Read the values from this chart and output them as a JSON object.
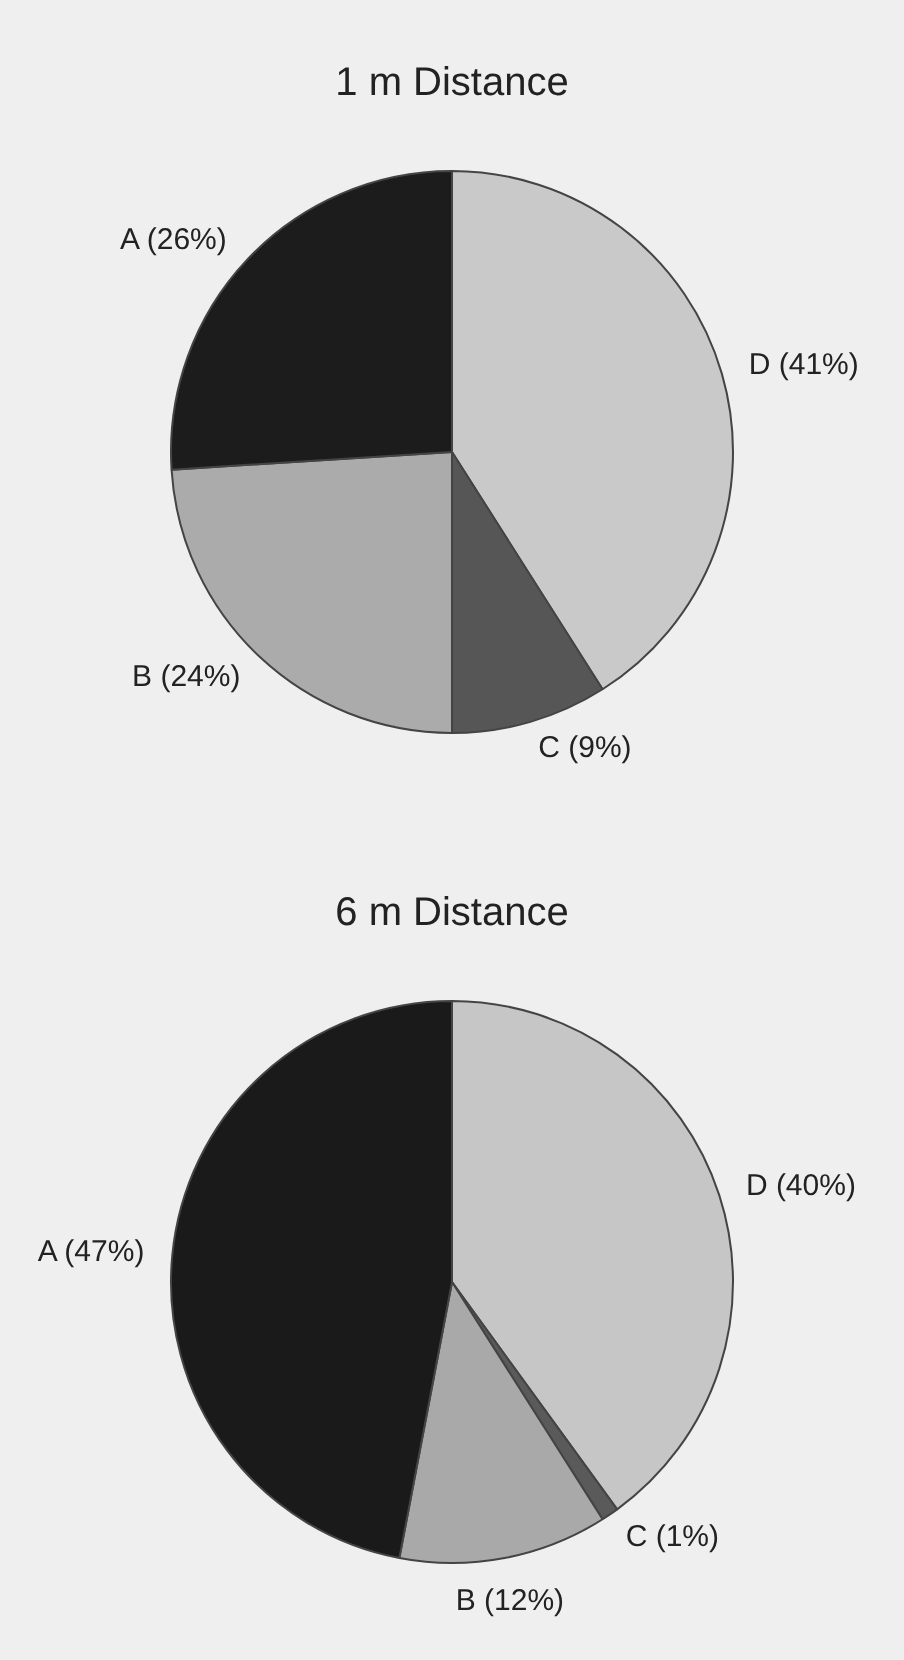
{
  "chart_data": [
    {
      "type": "pie",
      "title": "1 m Distance",
      "categories": [
        "D (41%)",
        "C (9%)",
        "B (24%)",
        "A (26%)"
      ],
      "values": [
        41,
        9,
        24,
        26
      ],
      "colors": [
        "#c9c9c9",
        "#565656",
        "#ababab",
        "#1c1c1c"
      ]
    },
    {
      "type": "pie",
      "title": "6 m Distance",
      "categories": [
        "D (40%)",
        "C (1%)",
        "B (12%)",
        "A (47%)"
      ],
      "values": [
        40,
        1,
        12,
        47
      ],
      "colors": [
        "#c6c6c6",
        "#5a5a5a",
        "#a9a9a9",
        "#1a1a1a"
      ]
    }
  ]
}
